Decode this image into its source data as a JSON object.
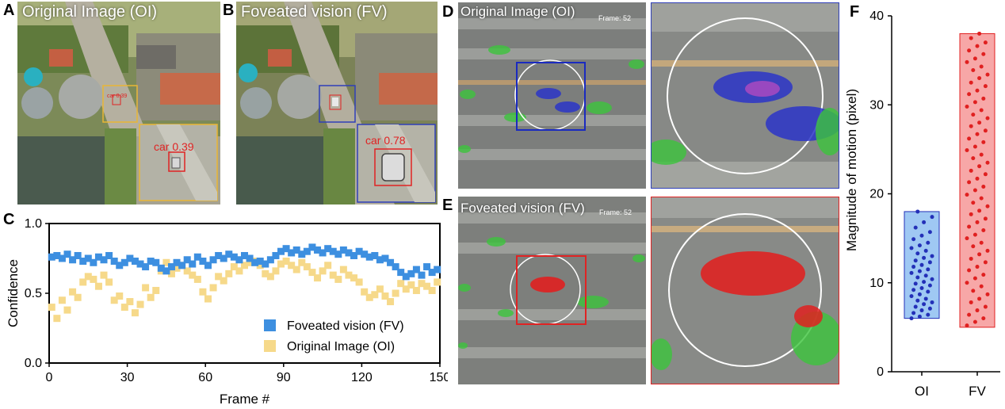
{
  "panels": {
    "a": {
      "letter": "A",
      "title": "Original Image (OI)",
      "det_small": "car 0.39",
      "det_large": "car 0.39"
    },
    "b": {
      "letter": "B",
      "title": "Foveated vision (FV)",
      "det_large": "car 0.78"
    },
    "c": {
      "letter": "C"
    },
    "d": {
      "letter": "D",
      "title": "Original Image (OI)",
      "frame": "Frame: 52"
    },
    "e": {
      "letter": "E",
      "title": "Foveated vision (FV)",
      "frame": "Frame: 52"
    },
    "f": {
      "letter": "F"
    }
  },
  "colors": {
    "fv": "#3d8fe0",
    "oi": "#f6d98a",
    "box_yellow": "#e9b634",
    "box_blue": "#2f3fb8",
    "box_red": "#e02323",
    "flow_green": "#3cc43c"
  },
  "chart_data": [
    {
      "type": "scatter",
      "xlabel": "Frame #",
      "ylabel": "Confidence",
      "xlim": [
        0,
        150
      ],
      "ylim": [
        0,
        1
      ],
      "xticks": [
        "0",
        "30",
        "60",
        "90",
        "120",
        "150"
      ],
      "yticks": [
        "0.0",
        "0.5",
        "1.0"
      ],
      "legend_position": "bottom-right",
      "series": [
        {
          "name": "Foveated vision (FV)",
          "color": "#3d8fe0",
          "x": [
            1,
            3,
            5,
            7,
            9,
            11,
            13,
            15,
            17,
            19,
            21,
            23,
            25,
            27,
            29,
            31,
            33,
            35,
            37,
            39,
            41,
            43,
            45,
            47,
            49,
            51,
            53,
            55,
            57,
            59,
            61,
            63,
            65,
            67,
            69,
            71,
            73,
            75,
            77,
            79,
            81,
            83,
            85,
            87,
            89,
            91,
            93,
            95,
            97,
            99,
            101,
            103,
            105,
            107,
            109,
            111,
            113,
            115,
            117,
            119,
            121,
            123,
            125,
            127,
            129,
            131,
            133,
            135,
            137,
            139,
            141,
            143,
            145,
            147,
            149
          ],
          "y": [
            0.76,
            0.77,
            0.75,
            0.78,
            0.74,
            0.77,
            0.73,
            0.75,
            0.72,
            0.76,
            0.74,
            0.77,
            0.73,
            0.7,
            0.72,
            0.75,
            0.73,
            0.71,
            0.69,
            0.73,
            0.72,
            0.68,
            0.66,
            0.69,
            0.72,
            0.7,
            0.74,
            0.71,
            0.76,
            0.73,
            0.7,
            0.74,
            0.77,
            0.75,
            0.78,
            0.76,
            0.74,
            0.77,
            0.75,
            0.72,
            0.73,
            0.71,
            0.74,
            0.77,
            0.8,
            0.82,
            0.79,
            0.81,
            0.78,
            0.8,
            0.83,
            0.81,
            0.79,
            0.82,
            0.8,
            0.78,
            0.81,
            0.79,
            0.77,
            0.8,
            0.78,
            0.76,
            0.77,
            0.74,
            0.75,
            0.72,
            0.69,
            0.65,
            0.62,
            0.64,
            0.67,
            0.63,
            0.69,
            0.65,
            0.67
          ]
        },
        {
          "name": "Original Image (OI)",
          "color": "#f6d98a",
          "x": [
            1,
            3,
            5,
            7,
            9,
            11,
            13,
            15,
            17,
            19,
            21,
            23,
            25,
            27,
            29,
            31,
            33,
            35,
            37,
            39,
            41,
            43,
            45,
            47,
            49,
            51,
            53,
            55,
            57,
            59,
            61,
            63,
            65,
            67,
            69,
            71,
            73,
            75,
            77,
            79,
            81,
            83,
            85,
            87,
            89,
            91,
            93,
            95,
            97,
            99,
            101,
            103,
            105,
            107,
            109,
            111,
            113,
            115,
            117,
            119,
            121,
            123,
            125,
            127,
            129,
            131,
            133,
            135,
            137,
            139,
            141,
            143,
            145,
            147,
            149
          ],
          "y": [
            0.4,
            0.32,
            0.45,
            0.38,
            0.51,
            0.47,
            0.58,
            0.62,
            0.6,
            0.55,
            0.63,
            0.58,
            0.45,
            0.48,
            0.4,
            0.44,
            0.36,
            0.42,
            0.54,
            0.47,
            0.52,
            0.66,
            0.72,
            0.64,
            0.68,
            0.7,
            0.66,
            0.63,
            0.6,
            0.51,
            0.46,
            0.54,
            0.62,
            0.59,
            0.64,
            0.69,
            0.66,
            0.7,
            0.72,
            0.73,
            0.7,
            0.64,
            0.62,
            0.66,
            0.71,
            0.73,
            0.7,
            0.67,
            0.72,
            0.69,
            0.65,
            0.61,
            0.66,
            0.7,
            0.63,
            0.6,
            0.67,
            0.63,
            0.61,
            0.58,
            0.51,
            0.47,
            0.49,
            0.53,
            0.48,
            0.44,
            0.5,
            0.57,
            0.53,
            0.56,
            0.52,
            0.57,
            0.55,
            0.52,
            0.58
          ]
        }
      ]
    },
    {
      "type": "bar",
      "ylabel": "Magnitude of motion (pixel)",
      "categories": [
        "OI",
        "FV"
      ],
      "ylim": [
        0,
        40
      ],
      "yticks": [
        "0",
        "10",
        "20",
        "30",
        "40"
      ],
      "bar_range": [
        [
          6,
          18
        ],
        [
          5,
          38
        ]
      ],
      "colors": [
        "#9fc8f3",
        "#f7a7a7"
      ],
      "point_colors": [
        "#2330b8",
        "#e02020"
      ],
      "points": [
        [
          6.0,
          6.2,
          6.4,
          6.6,
          6.9,
          7.1,
          7.3,
          7.6,
          7.8,
          8.0,
          8.2,
          8.5,
          8.7,
          9.0,
          9.2,
          9.4,
          9.7,
          9.9,
          10.1,
          10.4,
          10.6,
          10.8,
          11.1,
          11.3,
          11.5,
          11.8,
          12.0,
          12.3,
          12.5,
          12.8,
          13.0,
          13.3,
          13.6,
          13.9,
          14.2,
          14.5,
          14.9,
          15.3,
          15.7,
          16.2,
          16.8,
          17.4,
          18.0
        ],
        [
          5.2,
          5.6,
          6.0,
          6.4,
          6.9,
          7.3,
          7.8,
          8.2,
          8.7,
          9.1,
          9.6,
          10.0,
          10.5,
          10.9,
          11.4,
          11.8,
          12.3,
          12.7,
          13.2,
          13.6,
          14.1,
          14.5,
          15.0,
          15.4,
          15.9,
          16.3,
          16.8,
          17.2,
          17.7,
          18.1,
          18.6,
          19.0,
          19.5,
          19.9,
          20.4,
          20.8,
          21.3,
          21.7,
          22.2,
          22.6,
          23.1,
          23.5,
          24.0,
          24.4,
          24.9,
          25.3,
          25.8,
          26.2,
          26.7,
          27.1,
          27.6,
          28.0,
          28.5,
          28.9,
          29.4,
          29.8,
          30.3,
          30.7,
          31.2,
          31.6,
          32.1,
          32.5,
          33.0,
          33.4,
          33.9,
          34.3,
          34.8,
          35.2,
          35.7,
          36.1,
          36.6,
          37.0,
          37.5,
          38.0
        ]
      ]
    }
  ]
}
